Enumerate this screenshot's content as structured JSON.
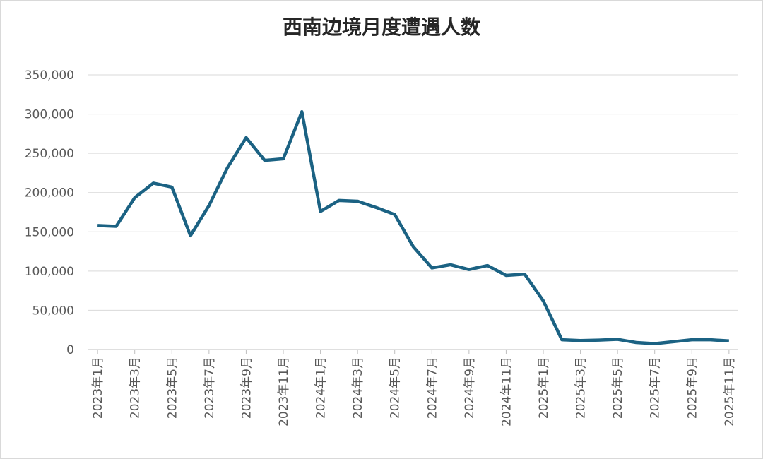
{
  "chart_data": {
    "type": "line",
    "title": "西南边境月度遭遇人数",
    "categories": [
      "2023年1月",
      null,
      "2023年3月",
      null,
      "2023年5月",
      null,
      "2023年7月",
      null,
      "2023年9月",
      null,
      "2023年11月",
      null,
      "2024年1月",
      null,
      "2024年3月",
      null,
      "2024年5月",
      null,
      "2024年7月",
      null,
      "2024年9月",
      null,
      "2024年11月",
      null,
      "2025年1月",
      null,
      "2025年3月",
      null,
      "2025年5月",
      null,
      "2025年7月",
      null,
      "2025年9月",
      null,
      "2025年11月"
    ],
    "series": [
      {
        "name": "西南边境月度遭遇人数",
        "color": "#1b6283",
        "values": [
          158000,
          157000,
          193500,
          212000,
          207000,
          145000,
          183500,
          232000,
          270000,
          241000,
          243000,
          303000,
          176000,
          190000,
          189000,
          181000,
          172000,
          131000,
          104000,
          108000,
          102000,
          107000,
          94500,
          96000,
          62000,
          12500,
          11500,
          12000,
          13000,
          9000,
          7500,
          10000,
          12500,
          12500,
          11000
        ]
      }
    ],
    "ylim": [
      0,
      350000
    ],
    "yticks": [
      0,
      {
        "value": 50000,
        "label": "50,000"
      },
      {
        "value": 100000,
        "label": "100,000"
      },
      {
        "value": 150000,
        "label": "150,000"
      },
      {
        "value": 200000,
        "label": "200,000"
      },
      {
        "value": 250000,
        "label": "250,000"
      },
      {
        "value": 300000,
        "label": "300,000"
      },
      {
        "value": 350000,
        "label": "350,000"
      }
    ],
    "grid": true
  }
}
